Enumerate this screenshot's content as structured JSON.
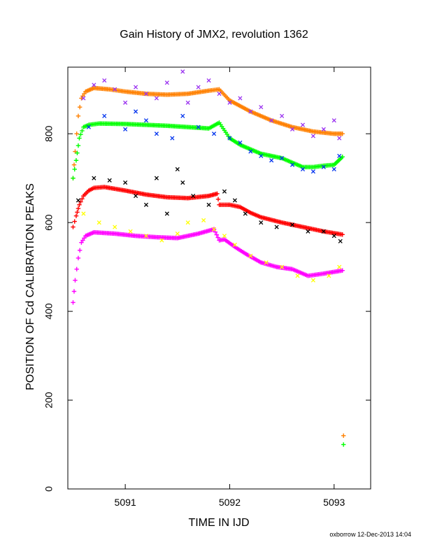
{
  "footer": "oxborrow 12-Dec-2013 14:04",
  "colors": {
    "orange": "#ff8000",
    "purple": "#9a32f0",
    "green": "#00ff00",
    "blue": "#0033ee",
    "red": "#ff0000",
    "black": "#000000",
    "magenta": "#ff00ff",
    "yellow": "#ffff00"
  },
  "chart_data": {
    "type": "scatter",
    "title": "Gain History of JMX2, revolution 1362",
    "xlabel": "TIME IN IJD",
    "ylabel": "POSITION OF Cd CALIBRATION PEAKS",
    "xlim": [
      5090.45,
      5093.35
    ],
    "ylim": [
      0,
      950
    ],
    "xticks": [
      5091,
      5092,
      5093
    ],
    "yticks": [
      0,
      200,
      400,
      600,
      800
    ],
    "grid": false,
    "legend": "none",
    "series": [
      {
        "color_key": "orange",
        "marker": "plus",
        "kind": "fit",
        "x": [
          5090.5,
          5090.52,
          5090.55,
          5090.58,
          5090.62,
          5090.7,
          5090.85,
          5091.0,
          5091.2,
          5091.4,
          5091.6,
          5091.8,
          5091.9,
          5092.0,
          5092.2,
          5092.4,
          5092.6,
          5092.8,
          5093.0,
          5093.08
        ],
        "y": [
          700,
          760,
          840,
          880,
          895,
          903,
          900,
          895,
          890,
          888,
          890,
          897,
          900,
          875,
          850,
          830,
          815,
          805,
          800,
          800
        ]
      },
      {
        "color_key": "purple",
        "marker": "x",
        "kind": "raw",
        "x": [
          5090.6,
          5090.7,
          5090.8,
          5090.9,
          5091.0,
          5091.1,
          5091.2,
          5091.3,
          5091.4,
          5091.55,
          5091.6,
          5091.7,
          5091.8,
          5091.9,
          5092.0,
          5092.1,
          5092.2,
          5092.3,
          5092.4,
          5092.5,
          5092.6,
          5092.7,
          5092.8,
          5092.9,
          5093.0,
          5093.05
        ],
        "y": [
          880,
          910,
          920,
          900,
          870,
          905,
          890,
          880,
          915,
          940,
          870,
          905,
          920,
          890,
          870,
          880,
          850,
          860,
          830,
          840,
          810,
          820,
          795,
          810,
          830,
          790
        ]
      },
      {
        "color_key": "green",
        "marker": "plus",
        "kind": "fit",
        "x": [
          5090.5,
          5090.53,
          5090.56,
          5090.6,
          5090.65,
          5090.75,
          5091.0,
          5091.2,
          5091.4,
          5091.6,
          5091.8,
          5091.9,
          5092.0,
          5092.1,
          5092.3,
          5092.5,
          5092.6,
          5092.7,
          5092.8,
          5092.9,
          5093.0,
          5093.08
        ],
        "y": [
          700,
          740,
          790,
          815,
          820,
          823,
          822,
          820,
          818,
          815,
          812,
          825,
          790,
          775,
          755,
          745,
          735,
          725,
          725,
          728,
          730,
          748
        ]
      },
      {
        "color_key": "blue",
        "marker": "x",
        "kind": "raw",
        "x": [
          5090.65,
          5090.8,
          5091.0,
          5091.1,
          5091.2,
          5091.3,
          5091.45,
          5091.55,
          5091.7,
          5091.85,
          5092.0,
          5092.1,
          5092.2,
          5092.3,
          5092.4,
          5092.5,
          5092.6,
          5092.7,
          5092.8,
          5092.9,
          5093.0,
          5093.05
        ],
        "y": [
          815,
          840,
          810,
          850,
          830,
          800,
          790,
          840,
          815,
          800,
          790,
          780,
          760,
          750,
          740,
          745,
          730,
          720,
          715,
          725,
          720,
          750
        ]
      },
      {
        "color_key": "red",
        "marker": "plus",
        "kind": "fit",
        "x": [
          5090.5,
          5090.53,
          5090.56,
          5090.6,
          5090.65,
          5090.7,
          5090.8,
          5091.0,
          5091.2,
          5091.4,
          5091.6,
          5091.8,
          5091.88,
          5091.9,
          5092.0,
          5092.1,
          5092.2,
          5092.3,
          5092.5,
          5092.7,
          5092.9,
          5093.08
        ],
        "y": [
          590,
          615,
          640,
          660,
          672,
          678,
          680,
          672,
          663,
          657,
          655,
          660,
          665,
          640,
          640,
          635,
          622,
          612,
          600,
          590,
          580,
          573
        ]
      },
      {
        "color_key": "black",
        "marker": "x",
        "kind": "raw",
        "x": [
          5090.55,
          5090.7,
          5090.85,
          5091.0,
          5091.1,
          5091.2,
          5091.3,
          5091.4,
          5091.5,
          5091.55,
          5091.65,
          5091.8,
          5091.95,
          5092.05,
          5092.15,
          5092.3,
          5092.45,
          5092.6,
          5092.75,
          5092.9,
          5093.0,
          5093.06
        ],
        "y": [
          650,
          700,
          695,
          690,
          660,
          640,
          700,
          620,
          720,
          690,
          660,
          640,
          670,
          650,
          620,
          600,
          590,
          595,
          580,
          580,
          570,
          558
        ]
      },
      {
        "color_key": "magenta",
        "marker": "plus",
        "kind": "fit",
        "x": [
          5090.5,
          5090.52,
          5090.55,
          5090.58,
          5090.62,
          5090.7,
          5090.9,
          5091.1,
          5091.3,
          5091.5,
          5091.7,
          5091.85,
          5091.9,
          5091.95,
          5092.05,
          5092.15,
          5092.3,
          5092.45,
          5092.6,
          5092.75,
          5092.9,
          5093.08
        ],
        "y": [
          420,
          470,
          520,
          555,
          570,
          578,
          575,
          570,
          567,
          565,
          575,
          585,
          560,
          562,
          545,
          530,
          510,
          500,
          495,
          480,
          485,
          492
        ]
      },
      {
        "color_key": "yellow",
        "marker": "x",
        "kind": "raw",
        "x": [
          5090.6,
          5090.75,
          5090.9,
          5091.05,
          5091.2,
          5091.35,
          5091.5,
          5091.6,
          5091.75,
          5091.85,
          5091.95,
          5092.05,
          5092.2,
          5092.35,
          5092.5,
          5092.65,
          5092.8,
          5092.95,
          5093.05
        ],
        "y": [
          620,
          600,
          590,
          580,
          570,
          560,
          575,
          600,
          605,
          585,
          570,
          550,
          525,
          510,
          500,
          480,
          470,
          480,
          500
        ]
      }
    ],
    "outliers": [
      {
        "color_key": "orange",
        "marker": "plus",
        "x": 5093.09,
        "y": 120
      },
      {
        "color_key": "green",
        "marker": "plus",
        "x": 5093.09,
        "y": 100
      }
    ]
  }
}
